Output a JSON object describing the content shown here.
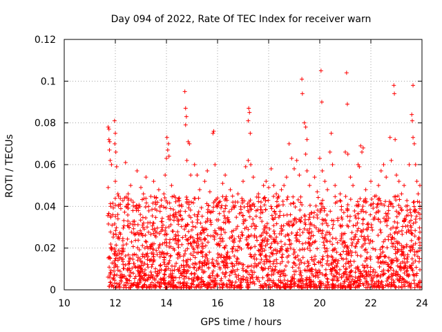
{
  "chart_data": {
    "type": "scatter",
    "title": "Day 094 of 2022, Rate Of TEC Index for receiver warn",
    "xlabel": "GPS time / hours",
    "ylabel": "ROTI / TECUs",
    "xlim": [
      10,
      24
    ],
    "ylim": [
      0,
      0.12
    ],
    "xticks": [
      10,
      12,
      14,
      16,
      18,
      20,
      22,
      24
    ],
    "xtick_labels": [
      "10",
      "12",
      "14",
      "16",
      "18",
      "20",
      "22",
      "24"
    ],
    "yticks": [
      0,
      0.02,
      0.04,
      0.06,
      0.08,
      0.1,
      0.12
    ],
    "ytick_labels": [
      "0",
      "0.02",
      "0.04",
      "0.06",
      "0.08",
      "0.1",
      "0.12"
    ],
    "grid": true,
    "marker": "+",
    "color": "#ff0000",
    "series": [
      {
        "name": "ROTI",
        "points": [
          [
            11.72,
            0.078
          ],
          [
            11.75,
            0.077
          ],
          [
            11.75,
            0.072
          ],
          [
            11.78,
            0.071
          ],
          [
            11.77,
            0.067
          ],
          [
            11.8,
            0.062
          ],
          [
            11.72,
            0.049
          ],
          [
            11.85,
            0.06
          ],
          [
            11.82,
            0.04
          ],
          [
            11.9,
            0.036
          ],
          [
            11.97,
            0.081
          ],
          [
            12.0,
            0.075
          ],
          [
            11.98,
            0.07
          ],
          [
            12.02,
            0.066
          ],
          [
            12.05,
            0.059
          ],
          [
            12.0,
            0.052
          ],
          [
            12.1,
            0.046
          ],
          [
            12.2,
            0.041
          ],
          [
            12.4,
            0.061
          ],
          [
            12.5,
            0.046
          ],
          [
            12.6,
            0.05
          ],
          [
            12.7,
            0.042
          ],
          [
            12.85,
            0.057
          ],
          [
            12.9,
            0.038
          ],
          [
            13.0,
            0.049
          ],
          [
            13.1,
            0.046
          ],
          [
            13.2,
            0.054
          ],
          [
            13.3,
            0.04
          ],
          [
            13.5,
            0.052
          ],
          [
            13.6,
            0.044
          ],
          [
            13.7,
            0.048
          ],
          [
            13.8,
            0.043
          ],
          [
            13.9,
            0.046
          ],
          [
            13.95,
            0.055
          ],
          [
            14.0,
            0.063
          ],
          [
            14.05,
            0.067
          ],
          [
            14.08,
            0.07
          ],
          [
            14.02,
            0.073
          ],
          [
            14.1,
            0.064
          ],
          [
            14.2,
            0.05
          ],
          [
            14.3,
            0.045
          ],
          [
            14.5,
            0.044
          ],
          [
            14.6,
            0.04
          ],
          [
            14.72,
            0.095
          ],
          [
            14.75,
            0.087
          ],
          [
            14.78,
            0.083
          ],
          [
            14.75,
            0.079
          ],
          [
            14.85,
            0.071
          ],
          [
            14.9,
            0.07
          ],
          [
            14.8,
            0.062
          ],
          [
            14.95,
            0.055
          ],
          [
            15.1,
            0.06
          ],
          [
            15.2,
            0.055
          ],
          [
            15.3,
            0.048
          ],
          [
            15.5,
            0.052
          ],
          [
            15.6,
            0.057
          ],
          [
            15.7,
            0.047
          ],
          [
            15.82,
            0.075
          ],
          [
            15.85,
            0.076
          ],
          [
            15.9,
            0.06
          ],
          [
            16.0,
            0.044
          ],
          [
            16.2,
            0.051
          ],
          [
            16.3,
            0.055
          ],
          [
            16.5,
            0.048
          ],
          [
            16.6,
            0.042
          ],
          [
            16.8,
            0.046
          ],
          [
            17.0,
            0.052
          ],
          [
            17.1,
            0.059
          ],
          [
            17.2,
            0.062
          ],
          [
            17.22,
            0.087
          ],
          [
            17.25,
            0.085
          ],
          [
            17.2,
            0.081
          ],
          [
            17.28,
            0.075
          ],
          [
            17.3,
            0.06
          ],
          [
            17.4,
            0.054
          ],
          [
            17.6,
            0.046
          ],
          [
            17.8,
            0.05
          ],
          [
            17.9,
            0.052
          ],
          [
            18.0,
            0.049
          ],
          [
            18.1,
            0.058
          ],
          [
            18.2,
            0.05
          ],
          [
            18.3,
            0.046
          ],
          [
            18.5,
            0.048
          ],
          [
            18.6,
            0.05
          ],
          [
            18.7,
            0.054
          ],
          [
            18.8,
            0.07
          ],
          [
            18.9,
            0.063
          ],
          [
            19.0,
            0.058
          ],
          [
            19.1,
            0.062
          ],
          [
            19.2,
            0.055
          ],
          [
            19.3,
            0.101
          ],
          [
            19.32,
            0.094
          ],
          [
            19.4,
            0.08
          ],
          [
            19.45,
            0.078
          ],
          [
            19.5,
            0.072
          ],
          [
            19.45,
            0.065
          ],
          [
            19.5,
            0.057
          ],
          [
            19.6,
            0.05
          ],
          [
            19.8,
            0.054
          ],
          [
            19.9,
            0.047
          ],
          [
            20.0,
            0.063
          ],
          [
            20.05,
            0.105
          ],
          [
            20.08,
            0.09
          ],
          [
            20.1,
            0.057
          ],
          [
            20.2,
            0.052
          ],
          [
            20.3,
            0.048
          ],
          [
            20.4,
            0.066
          ],
          [
            20.45,
            0.075
          ],
          [
            20.5,
            0.06
          ],
          [
            20.6,
            0.05
          ],
          [
            20.8,
            0.046
          ],
          [
            21.0,
            0.066
          ],
          [
            21.05,
            0.104
          ],
          [
            21.08,
            0.089
          ],
          [
            21.1,
            0.065
          ],
          [
            21.2,
            0.054
          ],
          [
            21.3,
            0.05
          ],
          [
            21.5,
            0.06
          ],
          [
            21.55,
            0.059
          ],
          [
            21.6,
            0.069
          ],
          [
            21.65,
            0.066
          ],
          [
            21.7,
            0.068
          ],
          [
            21.8,
            0.048
          ],
          [
            22.0,
            0.052
          ],
          [
            22.2,
            0.045
          ],
          [
            22.3,
            0.05
          ],
          [
            22.4,
            0.057
          ],
          [
            22.5,
            0.06
          ],
          [
            22.6,
            0.054
          ],
          [
            22.75,
            0.073
          ],
          [
            22.8,
            0.062
          ],
          [
            22.9,
            0.098
          ],
          [
            22.92,
            0.094
          ],
          [
            22.95,
            0.072
          ],
          [
            23.0,
            0.055
          ],
          [
            23.1,
            0.052
          ],
          [
            23.2,
            0.046
          ],
          [
            23.3,
            0.05
          ],
          [
            23.5,
            0.06
          ],
          [
            23.6,
            0.084
          ],
          [
            23.62,
            0.081
          ],
          [
            23.65,
            0.098
          ],
          [
            23.65,
            0.073
          ],
          [
            23.7,
            0.07
          ],
          [
            23.75,
            0.06
          ],
          [
            23.8,
            0.052
          ],
          [
            23.85,
            0.046
          ],
          [
            23.9,
            0.042
          ],
          [
            23.95,
            0.05
          ],
          [
            24.0,
            0.04
          ]
        ]
      }
    ],
    "dense_cloud": {
      "x_range": [
        11.7,
        24.0
      ],
      "y_floor": 0.001,
      "y_ceiling": 0.045,
      "count": 2400,
      "seed": 94
    }
  }
}
